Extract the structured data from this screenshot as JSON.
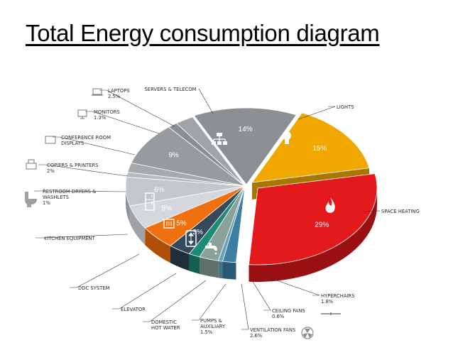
{
  "title": "Total Energy consumption diagram",
  "chart_data": {
    "type": "pie",
    "slices": [
      {
        "label": "SERVERS & TELECOM",
        "value": 14,
        "value_label": "14%",
        "color": "#8c8f93",
        "side": "#63666a",
        "icon": "network-icon"
      },
      {
        "label": "LIGHTS",
        "value": 15,
        "value_label": "15%",
        "color": "#f0a800",
        "side": "#a97600",
        "icon": "light-bulb-icon"
      },
      {
        "label": "SPACE HEATING",
        "value": 29,
        "value_label": "29%",
        "color": "#e3191c",
        "side": "#9a0f12",
        "icon": "flame-icon"
      },
      {
        "label": "HYPERCHAIRS",
        "value": 1.8,
        "value_label": "1.8%",
        "color": "#3d7fa3",
        "side": "#285a75"
      },
      {
        "label": "CEILING FANS",
        "value": 0.6,
        "value_label": "0.6%",
        "color": "#6aa0b5",
        "side": "#4a7384"
      },
      {
        "label": "VENTILATION FANS",
        "value": 2.6,
        "value_label": "2.6%",
        "color": "#8aa098",
        "side": "#5f716a"
      },
      {
        "label": "PUMPS & AUXILIARY",
        "value": 1.5,
        "value_label": "1.5%",
        "color": "#1f8a74",
        "side": "#155f50"
      },
      {
        "label": "DOMESTIC HOT WATER",
        "value": 3,
        "value_label": "3%",
        "color": "#34495a",
        "side": "#1f2d38",
        "icon": "faucet-icon"
      },
      {
        "label": "ELEVATOR",
        "value": 5,
        "value_label": "5%",
        "color": "#f07010",
        "side": "#b04f08",
        "icon": "elevator-icon"
      },
      {
        "label": "DDC SYSTEM",
        "value": 5,
        "value_label": "5%",
        "color": "#d4d8dc",
        "side": "#9ea2a6",
        "icon": "control-panel-icon"
      },
      {
        "label": "KITCHEN EQUIPMENT",
        "value": 6,
        "value_label": "6%",
        "color": "#c3c7cb",
        "side": "#8f9397",
        "icon": "refrigerator-icon"
      },
      {
        "label": "RESTROOM DRYERS & WASHLETS",
        "value": 1,
        "value_label": "1%",
        "color": "#b6babe",
        "side": "#85898d"
      },
      {
        "label": "COPIERS & PRINTERS",
        "value": 2,
        "value_label": "2%",
        "color": "#a6aaae",
        "side": "#797d81"
      },
      {
        "label": "CONFERENCE ROOM DISPLAYS",
        "value": 9,
        "value_label": "9%",
        "color": "#979b9f",
        "side": "#6d7175"
      },
      {
        "label": "MONITORS",
        "value": 1.3,
        "value_label": "1.3%",
        "color": "#8a8e92",
        "side": "#63676b"
      },
      {
        "label": "LAPTOPS",
        "value": 2.5,
        "value_label": "2.5%",
        "color": "#a0a4a8",
        "side": "#74787c"
      }
    ]
  }
}
